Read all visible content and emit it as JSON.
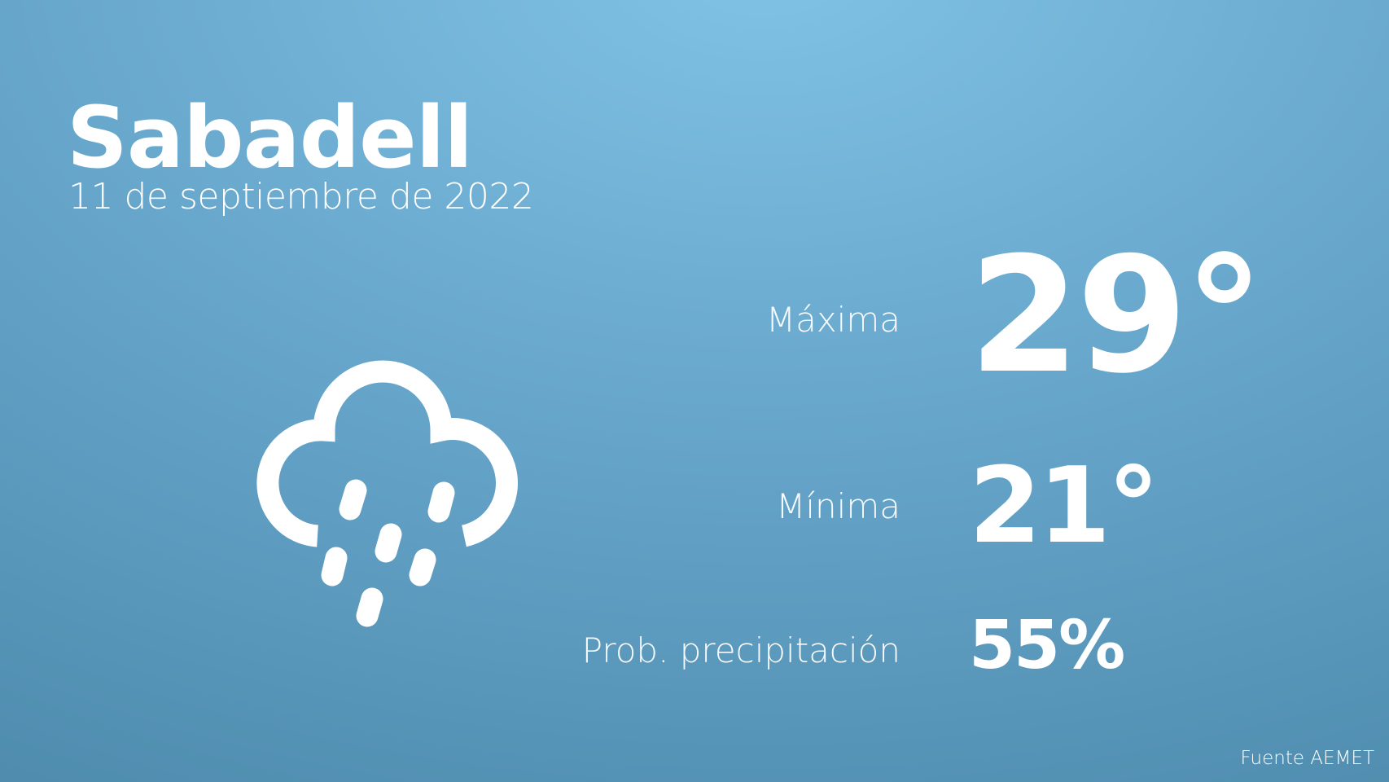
{
  "city": "Sabadell",
  "date": "11 de septiembre de 2022",
  "weather_icon": "cloud-rain-icon",
  "max": {
    "label": "Máxima",
    "value": "29°"
  },
  "min": {
    "label": "Mínima",
    "value": "21°"
  },
  "precipitation": {
    "label": "Prob. precipitación",
    "value": "55%"
  },
  "source": "Fuente AEMET",
  "colors": {
    "background_top": "#80c3e6",
    "background_bottom": "#4f8cae",
    "text": "#ffffff"
  }
}
